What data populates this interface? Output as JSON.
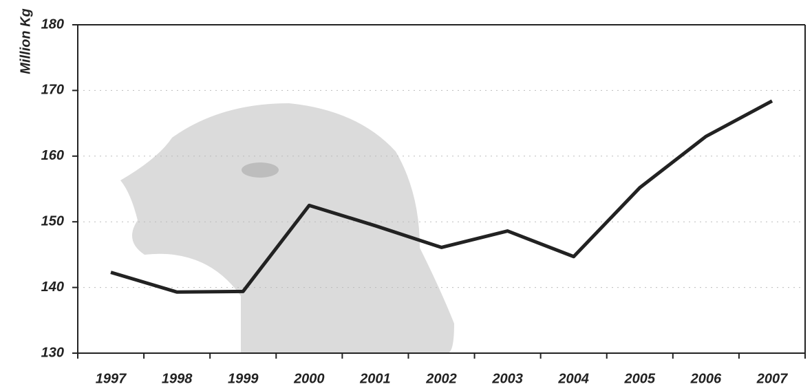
{
  "chart_data": {
    "type": "line",
    "y_label": "Million Kg",
    "categories": [
      "1997",
      "1998",
      "1999",
      "2000",
      "2001",
      "2002",
      "2003",
      "2004",
      "2005",
      "2006",
      "2007"
    ],
    "values": [
      142.3,
      139.3,
      139.4,
      152.5,
      149.4,
      146.1,
      148.6,
      144.7,
      155.2,
      163.0,
      168.4
    ],
    "color": "#222222",
    "ylim": [
      130,
      180
    ],
    "yticks": [
      130,
      140,
      150,
      160,
      170,
      180
    ],
    "grid": true
  }
}
